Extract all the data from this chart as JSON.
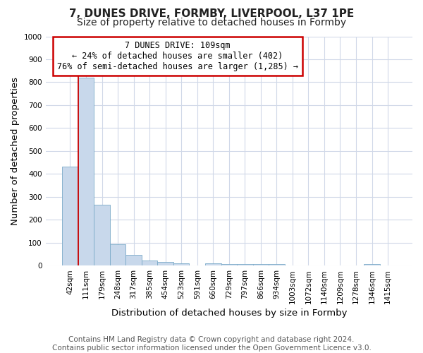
{
  "title": "7, DUNES DRIVE, FORMBY, LIVERPOOL, L37 1PE",
  "subtitle": "Size of property relative to detached houses in Formby",
  "xlabel": "Distribution of detached houses by size in Formby",
  "ylabel": "Number of detached properties",
  "footer_line1": "Contains HM Land Registry data © Crown copyright and database right 2024.",
  "footer_line2": "Contains public sector information licensed under the Open Government Licence v3.0.",
  "bin_labels": [
    "42sqm",
    "111sqm",
    "179sqm",
    "248sqm",
    "317sqm",
    "385sqm",
    "454sqm",
    "523sqm",
    "591sqm",
    "660sqm",
    "729sqm",
    "797sqm",
    "866sqm",
    "934sqm",
    "1003sqm",
    "1072sqm",
    "1140sqm",
    "1209sqm",
    "1278sqm",
    "1346sqm",
    "1415sqm"
  ],
  "bar_values": [
    433,
    820,
    267,
    93,
    47,
    23,
    16,
    10,
    0,
    10,
    7,
    7,
    7,
    7,
    0,
    0,
    0,
    0,
    0,
    8,
    0
  ],
  "bar_color": "#c8d8eb",
  "bar_edge_color": "#7aaac8",
  "vline_x": 0.5,
  "vline_color": "#cc0000",
  "annotation_text": "7 DUNES DRIVE: 109sqm\n← 24% of detached houses are smaller (402)\n76% of semi-detached houses are larger (1,285) →",
  "annotation_box_color": "#ffffff",
  "annotation_box_edge": "#cc0000",
  "ylim": [
    0,
    1000
  ],
  "yticks": [
    0,
    100,
    200,
    300,
    400,
    500,
    600,
    700,
    800,
    900,
    1000
  ],
  "background_color": "#ffffff",
  "plot_background": "#ffffff",
  "grid_color": "#d0d8e8",
  "title_fontsize": 11,
  "subtitle_fontsize": 10,
  "axis_label_fontsize": 9.5,
  "tick_fontsize": 7.5,
  "footer_fontsize": 7.5
}
